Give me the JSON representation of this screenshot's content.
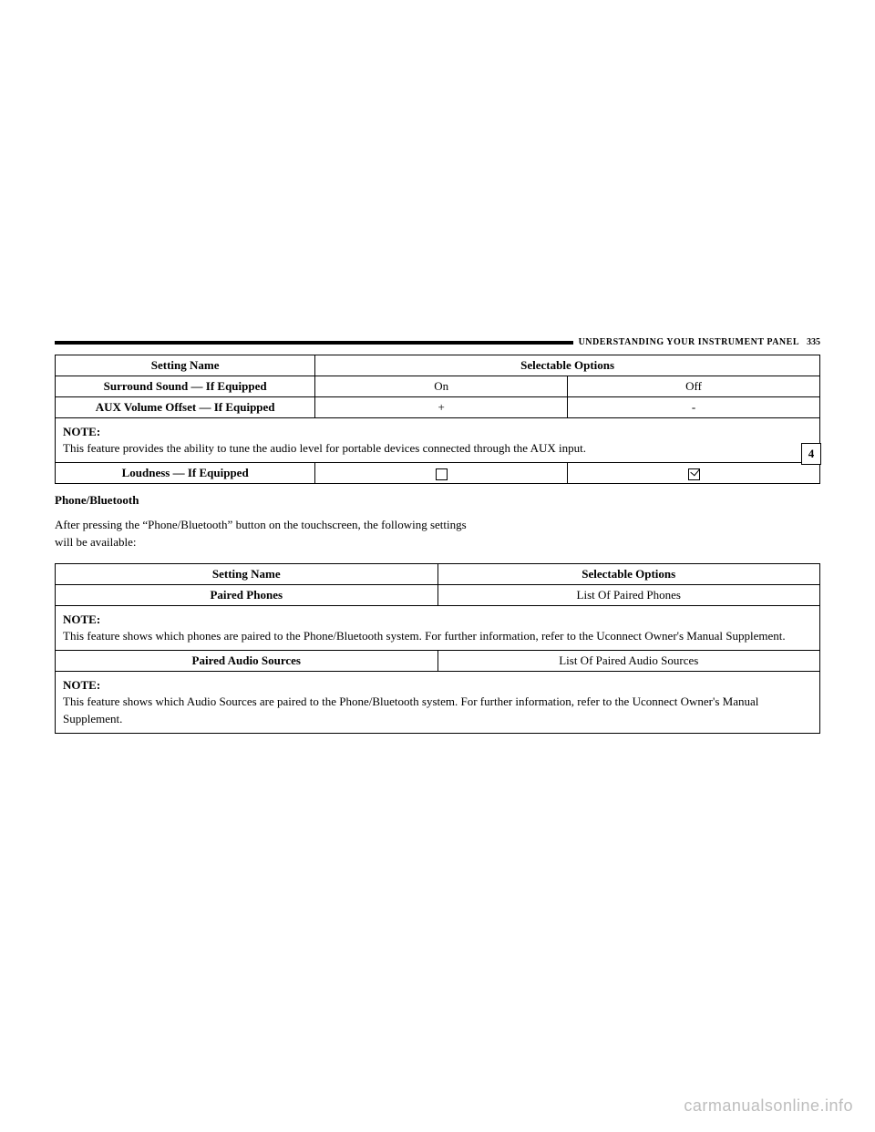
{
  "header": {
    "section_title": "UNDERSTANDING YOUR INSTRUMENT PANEL",
    "page_number": "335",
    "side_tab": "4"
  },
  "table1": {
    "headers": {
      "setting_name": "Setting Name",
      "selectable_options": "Selectable Options"
    },
    "rows": {
      "surround": {
        "name": "Surround Sound — If Equipped",
        "opt1": "On",
        "opt2": "Off"
      },
      "aux": {
        "name": "AUX Volume Offset — If Equipped",
        "opt1": "+",
        "opt2": "-"
      },
      "note": {
        "label": "NOTE:",
        "text": "This feature provides the ability to tune the audio level for portable devices connected through the AUX input."
      },
      "loudness": {
        "name": "Loudness — If Equipped"
      }
    }
  },
  "section": {
    "title": "Phone/Bluetooth",
    "intro": "After pressing the “Phone/Bluetooth” button on the touchscreen, the following settings will be available:"
  },
  "table2": {
    "headers": {
      "setting_name": "Setting Name",
      "selectable_options": "Selectable Options"
    },
    "rows": {
      "paired_phones": {
        "name": "Paired Phones",
        "value": "List Of Paired Phones"
      },
      "note1": {
        "label": "NOTE:",
        "text": "This feature shows which phones are paired to the Phone/Bluetooth system. For further information, refer to the Uconnect Owner's Manual Supplement."
      },
      "paired_audio": {
        "name": "Paired Audio Sources",
        "value": "List Of Paired Audio Sources"
      },
      "note2": {
        "label": "NOTE:",
        "text": "This feature shows which Audio Sources are paired to the Phone/Bluetooth system. For further information, refer to the Uconnect Owner's Manual Supplement."
      }
    }
  },
  "watermark": "carmanualsonline.info"
}
